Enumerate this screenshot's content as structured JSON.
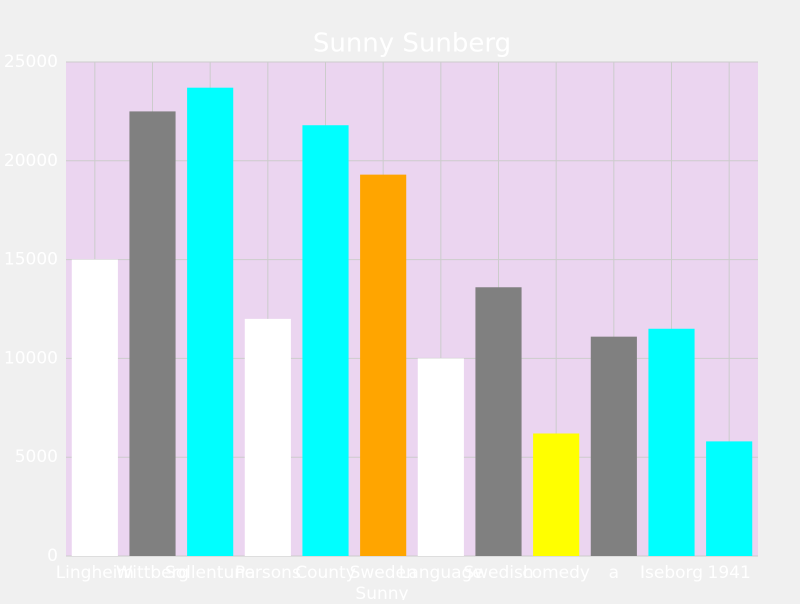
{
  "chart_data": {
    "type": "bar",
    "title": "Sunny Sunberg",
    "x_label": "Sunny",
    "categories": [
      "Lingheim",
      "Wittberg",
      "Sollentuna",
      "Persons",
      "County",
      "Sweden",
      "Language",
      "Swedish",
      "comedy",
      "a",
      "Iseborg",
      "1941"
    ],
    "values": [
      15000,
      22500,
      23700,
      12000,
      21800,
      19300,
      10000,
      13600,
      6200,
      11100,
      11500,
      5800
    ],
    "colors": [
      "#ffffff",
      "#808080",
      "#00ffff",
      "#ffffff",
      "#00ffff",
      "#ffa500",
      "#ffffff",
      "#808080",
      "#ffff00",
      "#808080",
      "#00ffff",
      "#00ffff"
    ],
    "ylim": [
      0,
      25000
    ],
    "yticks": [
      0,
      5000,
      10000,
      15000,
      20000,
      25000
    ],
    "grid": true
  }
}
